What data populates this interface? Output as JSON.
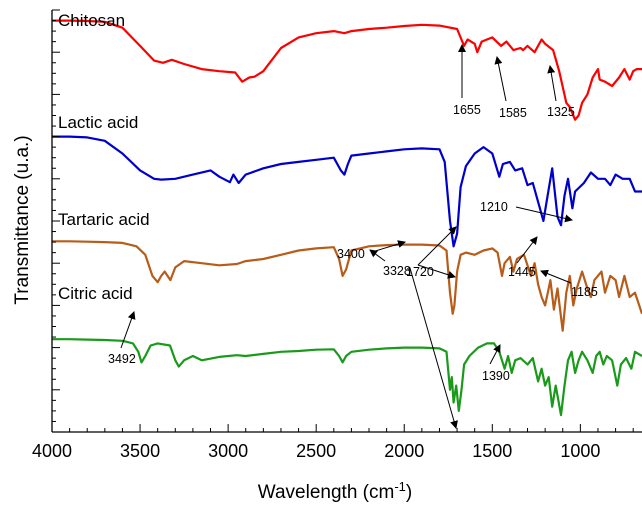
{
  "chart_data": {
    "type": "line",
    "xlabel_main": "Wavelength (cm",
    "xlabel_sup": "-1",
    "xlabel_close": ")",
    "ylabel": "Transmittance (u.a.)",
    "xlim": [
      4000,
      650
    ],
    "xticks": [
      4000,
      3500,
      3000,
      2500,
      2000,
      1500,
      1000
    ],
    "grid": false,
    "legend": "none",
    "series": [
      {
        "name": "Chitosan",
        "color": "#ff0000",
        "points": [
          [
            4000,
            0.975
          ],
          [
            3900,
            0.975
          ],
          [
            3800,
            0.974
          ],
          [
            3700,
            0.972
          ],
          [
            3600,
            0.958
          ],
          [
            3500,
            0.915
          ],
          [
            3420,
            0.88
          ],
          [
            3370,
            0.875
          ],
          [
            3320,
            0.882
          ],
          [
            3250,
            0.872
          ],
          [
            3150,
            0.86
          ],
          [
            3050,
            0.855
          ],
          [
            2960,
            0.852
          ],
          [
            2920,
            0.83
          ],
          [
            2880,
            0.84
          ],
          [
            2850,
            0.842
          ],
          [
            2800,
            0.855
          ],
          [
            2700,
            0.91
          ],
          [
            2600,
            0.935
          ],
          [
            2500,
            0.945
          ],
          [
            2400,
            0.95
          ],
          [
            2340,
            0.945
          ],
          [
            2300,
            0.95
          ],
          [
            2200,
            0.955
          ],
          [
            2100,
            0.958
          ],
          [
            2000,
            0.962
          ],
          [
            1900,
            0.965
          ],
          [
            1800,
            0.963
          ],
          [
            1700,
            0.955
          ],
          [
            1660,
            0.915
          ],
          [
            1640,
            0.93
          ],
          [
            1600,
            0.92
          ],
          [
            1585,
            0.9
          ],
          [
            1560,
            0.925
          ],
          [
            1500,
            0.935
          ],
          [
            1450,
            0.915
          ],
          [
            1420,
            0.925
          ],
          [
            1380,
            0.905
          ],
          [
            1340,
            0.91
          ],
          [
            1325,
            0.905
          ],
          [
            1300,
            0.915
          ],
          [
            1260,
            0.9
          ],
          [
            1220,
            0.93
          ],
          [
            1200,
            0.92
          ],
          [
            1155,
            0.905
          ],
          [
            1120,
            0.855
          ],
          [
            1080,
            0.78
          ],
          [
            1060,
            0.77
          ],
          [
            1030,
            0.74
          ],
          [
            1010,
            0.75
          ],
          [
            990,
            0.78
          ],
          [
            960,
            0.8
          ],
          [
            930,
            0.84
          ],
          [
            900,
            0.86
          ],
          [
            890,
            0.835
          ],
          [
            860,
            0.83
          ],
          [
            820,
            0.82
          ],
          [
            780,
            0.84
          ],
          [
            750,
            0.86
          ],
          [
            720,
            0.835
          ],
          [
            700,
            0.855
          ],
          [
            680,
            0.86
          ],
          [
            650,
            0.86
          ]
        ]
      },
      {
        "name": "Lactic acid",
        "color": "#0000cc",
        "points": [
          [
            4000,
            0.7
          ],
          [
            3900,
            0.7
          ],
          [
            3800,
            0.698
          ],
          [
            3700,
            0.69
          ],
          [
            3600,
            0.66
          ],
          [
            3500,
            0.62
          ],
          [
            3420,
            0.6
          ],
          [
            3380,
            0.598
          ],
          [
            3300,
            0.6
          ],
          [
            3200,
            0.61
          ],
          [
            3100,
            0.62
          ],
          [
            3050,
            0.605
          ],
          [
            2990,
            0.592
          ],
          [
            2970,
            0.61
          ],
          [
            2940,
            0.59
          ],
          [
            2900,
            0.61
          ],
          [
            2800,
            0.625
          ],
          [
            2700,
            0.635
          ],
          [
            2600,
            0.64
          ],
          [
            2500,
            0.645
          ],
          [
            2400,
            0.65
          ],
          [
            2360,
            0.62
          ],
          [
            2340,
            0.61
          ],
          [
            2320,
            0.635
          ],
          [
            2300,
            0.655
          ],
          [
            2200,
            0.66
          ],
          [
            2100,
            0.665
          ],
          [
            2000,
            0.67
          ],
          [
            1900,
            0.672
          ],
          [
            1800,
            0.67
          ],
          [
            1770,
            0.64
          ],
          [
            1740,
            0.5
          ],
          [
            1720,
            0.44
          ],
          [
            1700,
            0.47
          ],
          [
            1680,
            0.58
          ],
          [
            1650,
            0.63
          ],
          [
            1600,
            0.66
          ],
          [
            1550,
            0.675
          ],
          [
            1500,
            0.66
          ],
          [
            1460,
            0.605
          ],
          [
            1440,
            0.635
          ],
          [
            1400,
            0.64
          ],
          [
            1370,
            0.62
          ],
          [
            1330,
            0.625
          ],
          [
            1300,
            0.585
          ],
          [
            1270,
            0.59
          ],
          [
            1230,
            0.53
          ],
          [
            1210,
            0.5
          ],
          [
            1190,
            0.55
          ],
          [
            1160,
            0.625
          ],
          [
            1130,
            0.51
          ],
          [
            1110,
            0.49
          ],
          [
            1090,
            0.56
          ],
          [
            1070,
            0.6
          ],
          [
            1045,
            0.53
          ],
          [
            1030,
            0.57
          ],
          [
            980,
            0.59
          ],
          [
            940,
            0.615
          ],
          [
            900,
            0.6
          ],
          [
            860,
            0.6
          ],
          [
            830,
            0.585
          ],
          [
            800,
            0.61
          ],
          [
            760,
            0.6
          ],
          [
            720,
            0.6
          ],
          [
            690,
            0.57
          ],
          [
            650,
            0.57
          ]
        ]
      },
      {
        "name": "Tartaric acid",
        "color": "#b85c1a",
        "points": [
          [
            4000,
            0.452
          ],
          [
            3900,
            0.452
          ],
          [
            3800,
            0.451
          ],
          [
            3700,
            0.45
          ],
          [
            3600,
            0.448
          ],
          [
            3520,
            0.44
          ],
          [
            3470,
            0.42
          ],
          [
            3430,
            0.37
          ],
          [
            3400,
            0.355
          ],
          [
            3380,
            0.37
          ],
          [
            3360,
            0.38
          ],
          [
            3328,
            0.36
          ],
          [
            3300,
            0.39
          ],
          [
            3250,
            0.405
          ],
          [
            3150,
            0.4
          ],
          [
            3050,
            0.395
          ],
          [
            2950,
            0.398
          ],
          [
            2900,
            0.405
          ],
          [
            2800,
            0.41
          ],
          [
            2700,
            0.42
          ],
          [
            2600,
            0.43
          ],
          [
            2500,
            0.435
          ],
          [
            2400,
            0.438
          ],
          [
            2370,
            0.41
          ],
          [
            2350,
            0.37
          ],
          [
            2330,
            0.385
          ],
          [
            2300,
            0.43
          ],
          [
            2200,
            0.44
          ],
          [
            2100,
            0.443
          ],
          [
            2000,
            0.444
          ],
          [
            1900,
            0.444
          ],
          [
            1800,
            0.442
          ],
          [
            1760,
            0.43
          ],
          [
            1740,
            0.33
          ],
          [
            1725,
            0.28
          ],
          [
            1715,
            0.3
          ],
          [
            1700,
            0.38
          ],
          [
            1680,
            0.42
          ],
          [
            1650,
            0.425
          ],
          [
            1600,
            0.42
          ],
          [
            1550,
            0.43
          ],
          [
            1500,
            0.435
          ],
          [
            1470,
            0.425
          ],
          [
            1445,
            0.37
          ],
          [
            1430,
            0.4
          ],
          [
            1400,
            0.415
          ],
          [
            1380,
            0.38
          ],
          [
            1360,
            0.41
          ],
          [
            1320,
            0.42
          ],
          [
            1280,
            0.37
          ],
          [
            1260,
            0.4
          ],
          [
            1240,
            0.35
          ],
          [
            1220,
            0.32
          ],
          [
            1200,
            0.3
          ],
          [
            1185,
            0.33
          ],
          [
            1170,
            0.36
          ],
          [
            1150,
            0.29
          ],
          [
            1130,
            0.34
          ],
          [
            1100,
            0.24
          ],
          [
            1080,
            0.33
          ],
          [
            1060,
            0.37
          ],
          [
            1040,
            0.3
          ],
          [
            1020,
            0.34
          ],
          [
            990,
            0.38
          ],
          [
            960,
            0.34
          ],
          [
            940,
            0.32
          ],
          [
            920,
            0.36
          ],
          [
            880,
            0.38
          ],
          [
            860,
            0.33
          ],
          [
            830,
            0.37
          ],
          [
            800,
            0.36
          ],
          [
            780,
            0.32
          ],
          [
            750,
            0.37
          ],
          [
            720,
            0.32
          ],
          [
            690,
            0.33
          ],
          [
            650,
            0.28
          ]
        ]
      },
      {
        "name": "Citric acid",
        "color": "#1a9a1a",
        "points": [
          [
            4000,
            0.22
          ],
          [
            3900,
            0.22
          ],
          [
            3800,
            0.219
          ],
          [
            3700,
            0.218
          ],
          [
            3600,
            0.216
          ],
          [
            3540,
            0.21
          ],
          [
            3510,
            0.19
          ],
          [
            3492,
            0.165
          ],
          [
            3470,
            0.18
          ],
          [
            3440,
            0.205
          ],
          [
            3400,
            0.21
          ],
          [
            3330,
            0.205
          ],
          [
            3300,
            0.17
          ],
          [
            3280,
            0.155
          ],
          [
            3250,
            0.17
          ],
          [
            3200,
            0.18
          ],
          [
            3150,
            0.17
          ],
          [
            3050,
            0.178
          ],
          [
            2950,
            0.182
          ],
          [
            2900,
            0.18
          ],
          [
            2800,
            0.185
          ],
          [
            2700,
            0.19
          ],
          [
            2600,
            0.192
          ],
          [
            2500,
            0.195
          ],
          [
            2400,
            0.196
          ],
          [
            2370,
            0.18
          ],
          [
            2350,
            0.165
          ],
          [
            2330,
            0.18
          ],
          [
            2300,
            0.19
          ],
          [
            2200,
            0.195
          ],
          [
            2100,
            0.198
          ],
          [
            2000,
            0.2
          ],
          [
            1900,
            0.2
          ],
          [
            1800,
            0.198
          ],
          [
            1760,
            0.19
          ],
          [
            1740,
            0.1
          ],
          [
            1730,
            0.13
          ],
          [
            1720,
            0.07
          ],
          [
            1705,
            0.11
          ],
          [
            1690,
            0.05
          ],
          [
            1675,
            0.1
          ],
          [
            1660,
            0.16
          ],
          [
            1630,
            0.18
          ],
          [
            1580,
            0.2
          ],
          [
            1530,
            0.21
          ],
          [
            1490,
            0.21
          ],
          [
            1460,
            0.19
          ],
          [
            1430,
            0.15
          ],
          [
            1410,
            0.18
          ],
          [
            1390,
            0.14
          ],
          [
            1370,
            0.17
          ],
          [
            1340,
            0.175
          ],
          [
            1300,
            0.16
          ],
          [
            1270,
            0.175
          ],
          [
            1240,
            0.12
          ],
          [
            1220,
            0.15
          ],
          [
            1200,
            0.11
          ],
          [
            1180,
            0.13
          ],
          [
            1160,
            0.06
          ],
          [
            1140,
            0.11
          ],
          [
            1110,
            0.04
          ],
          [
            1090,
            0.11
          ],
          [
            1070,
            0.17
          ],
          [
            1050,
            0.19
          ],
          [
            1030,
            0.14
          ],
          [
            1010,
            0.17
          ],
          [
            990,
            0.19
          ],
          [
            960,
            0.17
          ],
          [
            930,
            0.14
          ],
          [
            910,
            0.18
          ],
          [
            890,
            0.19
          ],
          [
            870,
            0.16
          ],
          [
            850,
            0.18
          ],
          [
            820,
            0.17
          ],
          [
            790,
            0.11
          ],
          [
            770,
            0.16
          ],
          [
            740,
            0.175
          ],
          [
            710,
            0.15
          ],
          [
            690,
            0.19
          ],
          [
            650,
            0.18
          ]
        ]
      }
    ],
    "annotations": [
      {
        "text": "1655",
        "x": 1655
      },
      {
        "text": "1585",
        "x": 1585
      },
      {
        "text": "1325",
        "x": 1325
      },
      {
        "text": "1210",
        "x": 1210
      },
      {
        "text": "3400",
        "x": 3400
      },
      {
        "text": "3328",
        "x": 3328
      },
      {
        "text": "1720",
        "x": 1720
      },
      {
        "text": "1445",
        "x": 1445
      },
      {
        "text": "1185",
        "x": 1185
      },
      {
        "text": "3492",
        "x": 3492
      },
      {
        "text": "1390",
        "x": 1390
      }
    ]
  }
}
